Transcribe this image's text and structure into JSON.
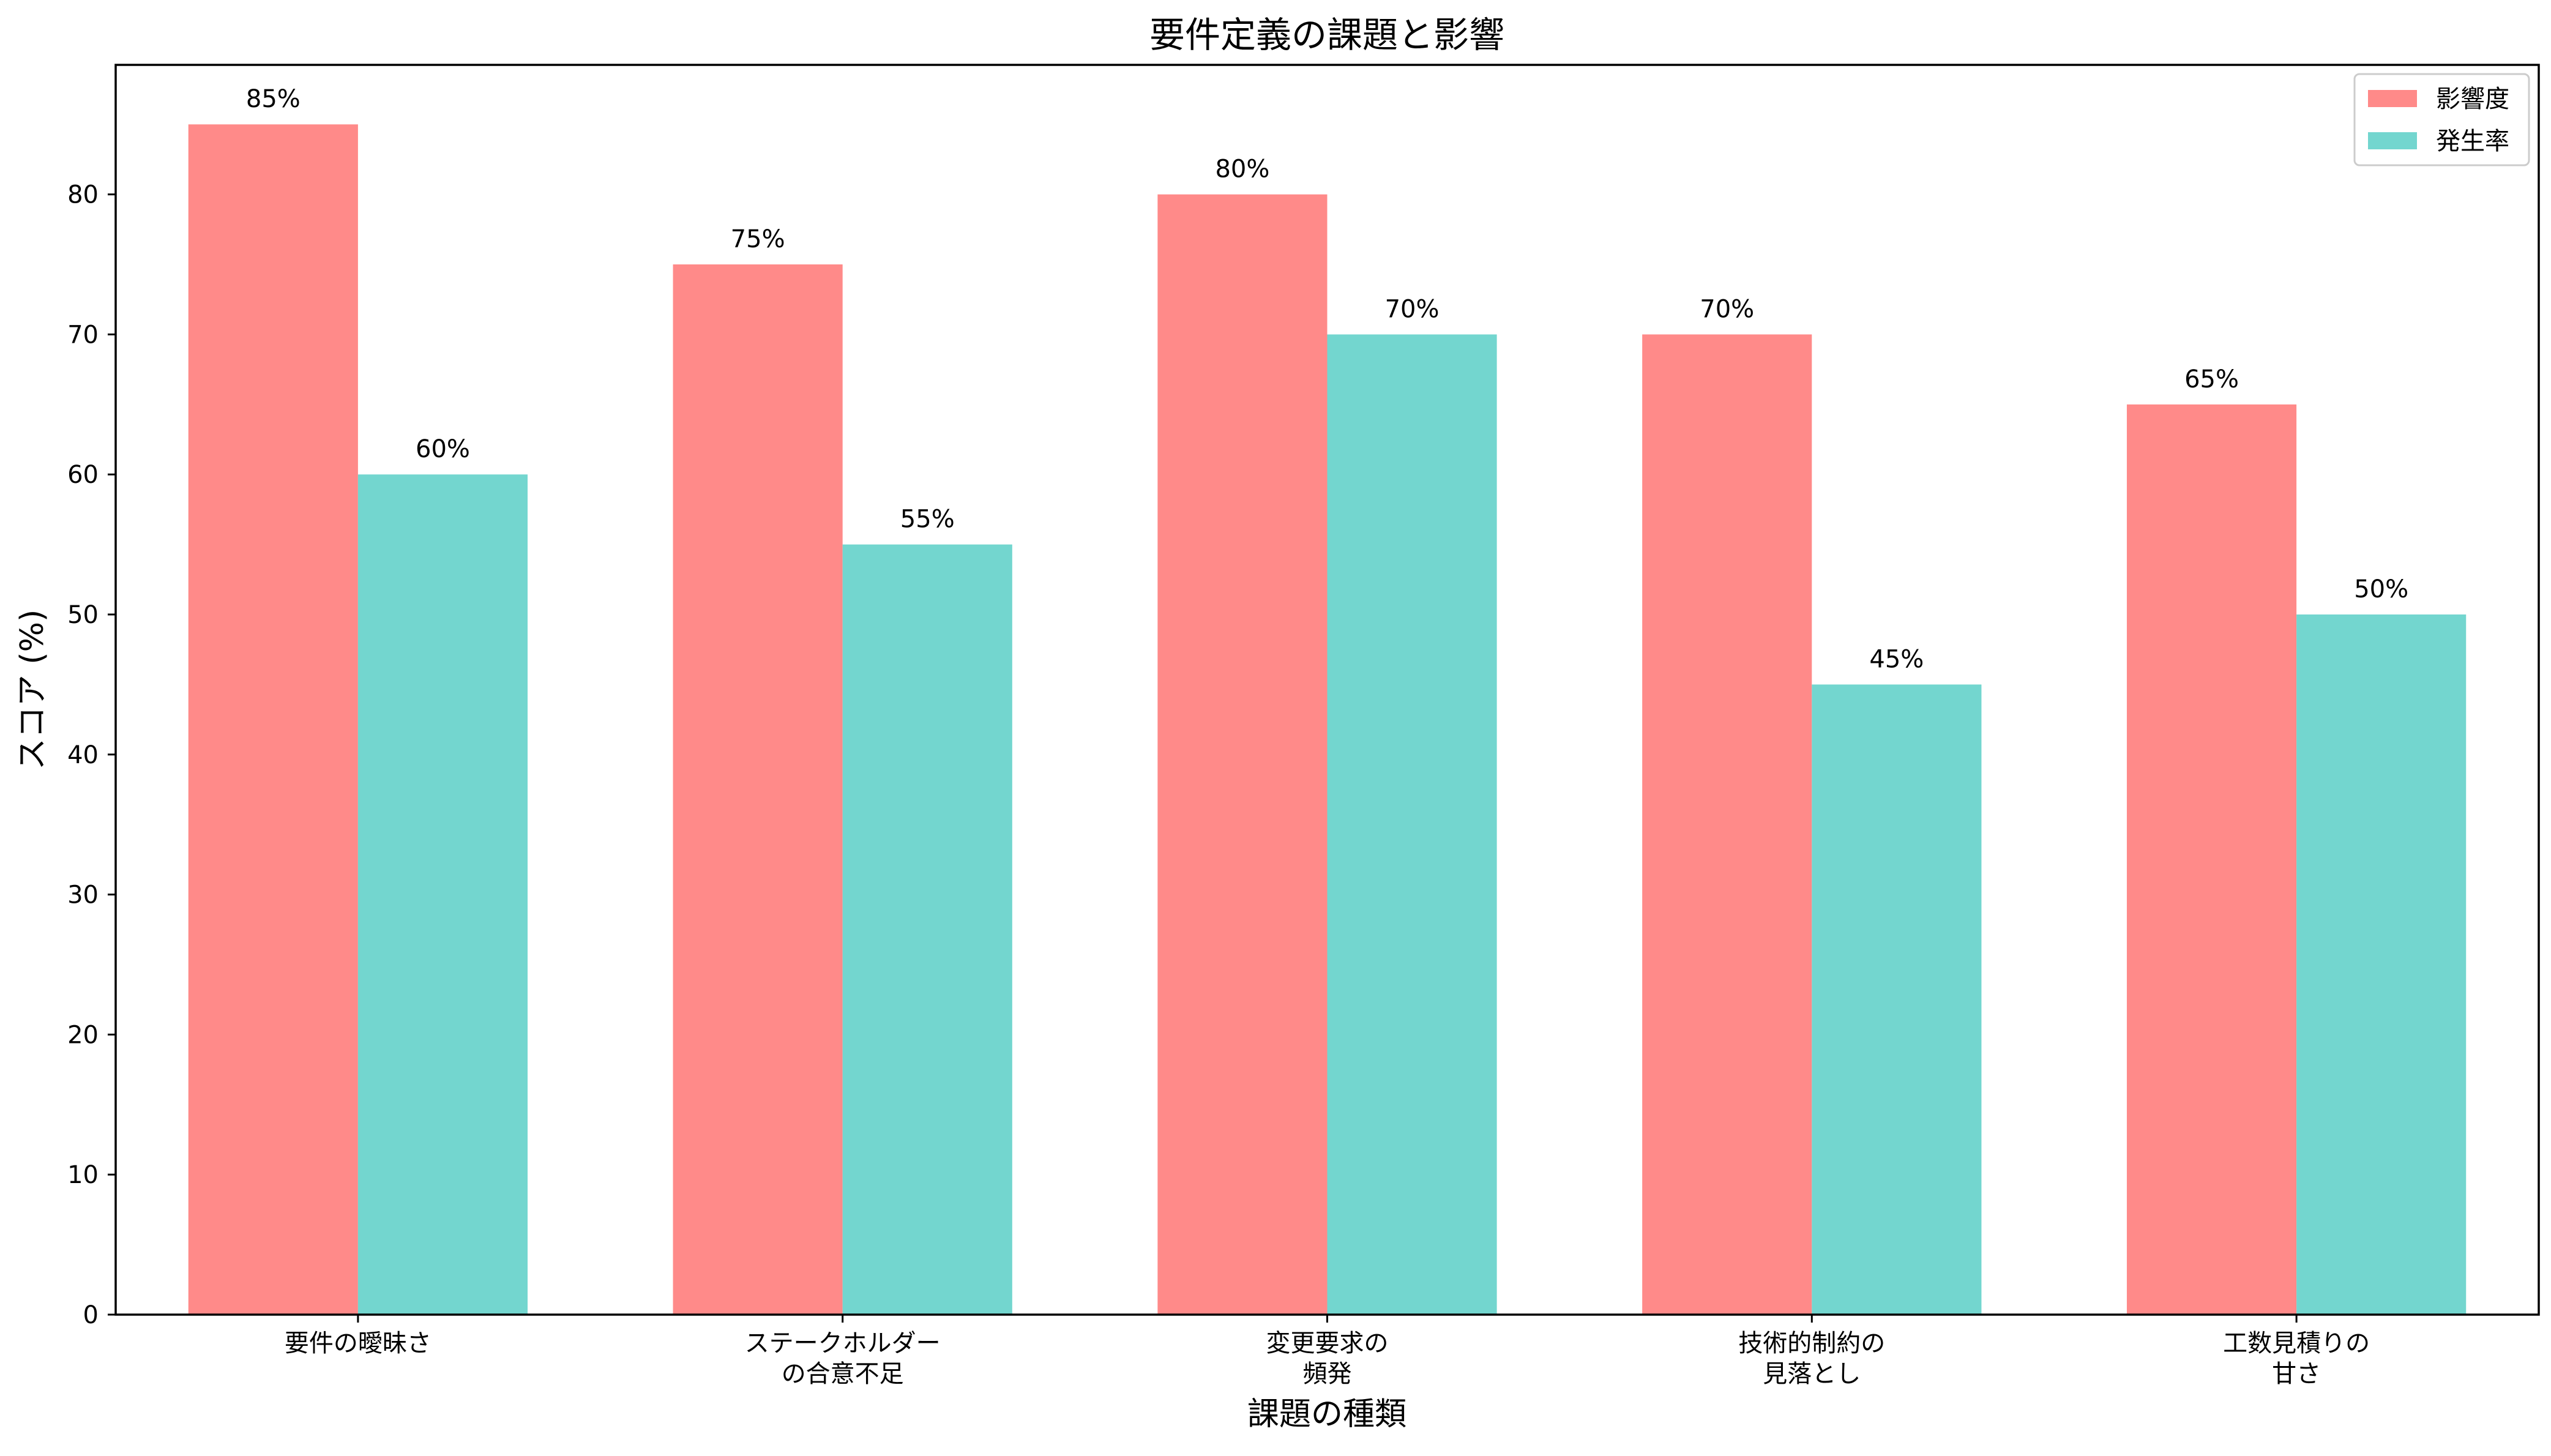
{
  "chart_data": {
    "type": "bar",
    "title": "要件定義の課題と影響",
    "xlabel": "課題の種類",
    "ylabel": "スコア (%)",
    "categories": [
      [
        "要件の曖昧さ"
      ],
      [
        "ステークホルダー",
        "の合意不足"
      ],
      [
        "変更要求の",
        "頻発"
      ],
      [
        "技術的制約の",
        "見落とし"
      ],
      [
        "工数見積りの",
        "甘さ"
      ]
    ],
    "series": [
      {
        "name": "影響度",
        "values": [
          85,
          75,
          80,
          70,
          65
        ],
        "color": "#FF8A89"
      },
      {
        "name": "発生率",
        "values": [
          60,
          55,
          70,
          45,
          50
        ],
        "color": "#73D6CF"
      }
    ],
    "ylim": [
      0,
      89.25
    ],
    "yticks": [
      0,
      10,
      20,
      30,
      40,
      50,
      60,
      70,
      80
    ],
    "value_label_suffix": "%",
    "grid": false,
    "legend_position": "top-right"
  }
}
